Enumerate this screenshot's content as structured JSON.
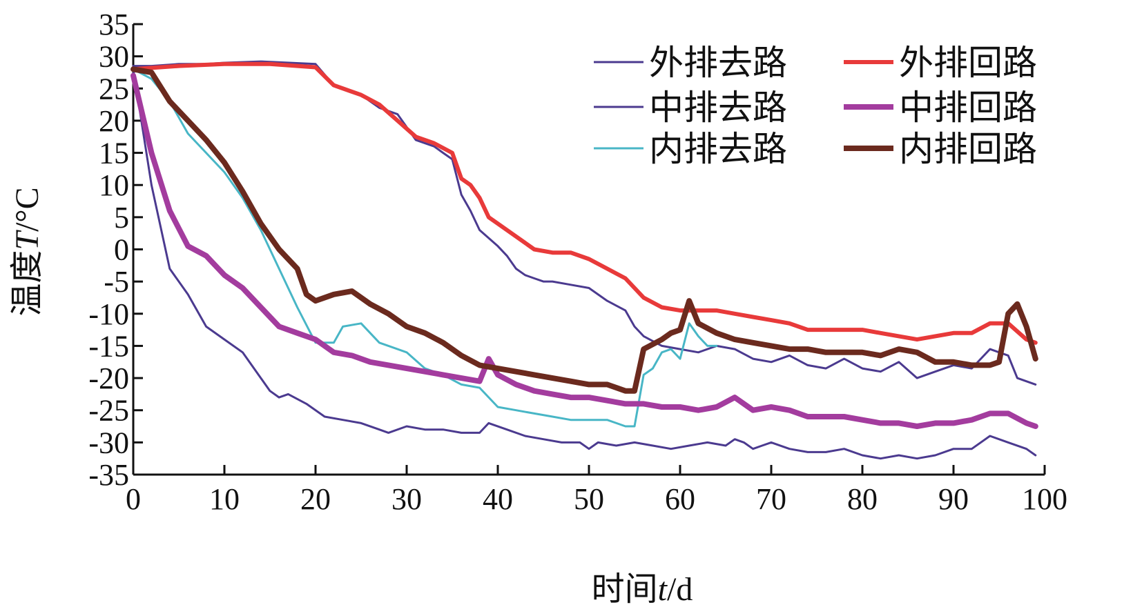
{
  "chart_data": {
    "type": "line",
    "title": "",
    "xlabel": {
      "prefix": "时间",
      "var": "t",
      "suffix": "/d"
    },
    "ylabel": {
      "prefix": "温度",
      "var": "T",
      "suffix": "/°C"
    },
    "xlim": [
      0,
      100
    ],
    "ylim": [
      -35,
      35
    ],
    "x_ticks": [
      0,
      10,
      20,
      30,
      40,
      50,
      60,
      70,
      80,
      90,
      100
    ],
    "y_ticks": [
      35,
      30,
      25,
      20,
      15,
      10,
      5,
      0,
      -5,
      -10,
      -15,
      -20,
      -25,
      -30,
      -35
    ],
    "grid": false,
    "legend_position": "top-right",
    "series": [
      {
        "name": "外排去路",
        "color": "#4b3a8f",
        "stroke_width": 3,
        "x": [
          0,
          2,
          5,
          8,
          10,
          14,
          20,
          22,
          25,
          27,
          29,
          31,
          33,
          34,
          35,
          36,
          37,
          38,
          40,
          41,
          42,
          43,
          44,
          45,
          46,
          48,
          50,
          52,
          54,
          55,
          56,
          58,
          60,
          62,
          64,
          66,
          68,
          70,
          72,
          74,
          76,
          78,
          80,
          82,
          84,
          86,
          88,
          90,
          92,
          94,
          96,
          97,
          99
        ],
        "y": [
          28.5,
          28.5,
          28.8,
          28.8,
          29,
          29.2,
          28.8,
          25.5,
          24,
          22,
          21,
          17,
          16,
          15,
          14,
          8.5,
          6,
          3,
          0.5,
          -1,
          -3,
          -4,
          -4.5,
          -5,
          -5,
          -5.5,
          -6,
          -8,
          -9.5,
          -12,
          -13.5,
          -15,
          -15.5,
          -16,
          -15,
          -15.5,
          -17,
          -17.5,
          -16.5,
          -18,
          -18.5,
          -17,
          -18.5,
          -19,
          -17.5,
          -20,
          -19,
          -18,
          -18.5,
          -15.5,
          -16.5,
          -20,
          -21
        ]
      },
      {
        "name": "中排去路",
        "color": "#4b3a8f",
        "stroke_width": 3,
        "x": [
          0,
          2,
          4,
          6,
          8,
          10,
          12,
          14,
          15,
          16,
          17,
          19,
          21,
          23,
          25,
          27,
          28,
          30,
          32,
          34,
          36,
          38,
          39,
          41,
          43,
          45,
          47,
          49,
          50,
          51,
          53,
          55,
          57,
          59,
          61,
          63,
          65,
          66,
          67,
          68,
          69,
          70,
          72,
          74,
          76,
          78,
          80,
          82,
          84,
          86,
          88,
          90,
          92,
          94,
          96,
          98,
          99
        ],
        "y": [
          28,
          10,
          -3,
          -7,
          -12,
          -14,
          -16,
          -20,
          -22,
          -23,
          -22.5,
          -24,
          -26,
          -26.5,
          -27,
          -28,
          -28.5,
          -27.5,
          -28,
          -28,
          -28.5,
          -28.5,
          -27,
          -28,
          -29,
          -29.5,
          -30,
          -30,
          -31,
          -30,
          -30.5,
          -30,
          -30.5,
          -31,
          -30.5,
          -30,
          -30.5,
          -29.5,
          -30,
          -31,
          -30.5,
          -30,
          -31,
          -31.5,
          -31.5,
          -31,
          -32,
          -32.5,
          -32,
          -32.5,
          -32,
          -31,
          -31,
          -29,
          -30,
          -31,
          -32
        ]
      },
      {
        "name": "内排去路",
        "color": "#48b6c6",
        "stroke_width": 3,
        "x": [
          0,
          2,
          4,
          6,
          8,
          10,
          12,
          14,
          16,
          18,
          20,
          22,
          23,
          25,
          27,
          28,
          30,
          32,
          34,
          36,
          38,
          40,
          42,
          44,
          46,
          48,
          50,
          52,
          54,
          55,
          56,
          57,
          58,
          59,
          60,
          61,
          62,
          63,
          64
        ],
        "y": [
          28,
          26.5,
          23,
          18,
          15,
          12,
          8,
          3,
          -3,
          -9,
          -14.5,
          -14.5,
          -12,
          -11.5,
          -14.5,
          -15,
          -16,
          -18.5,
          -19.5,
          -21,
          -21.5,
          -24.5,
          -25,
          -25.5,
          -26,
          -26.5,
          -26.5,
          -26.5,
          -27.5,
          -27.5,
          -19.5,
          -18.5,
          -16,
          -15.5,
          -17,
          -11.5,
          -13.5,
          -15,
          -15
        ]
      },
      {
        "name": "外排回路",
        "color": "#e83a3a",
        "stroke_width": 6,
        "x": [
          0,
          5,
          10,
          15,
          20,
          22,
          25,
          27,
          29,
          31,
          33,
          35,
          36,
          37,
          38,
          39,
          40,
          42,
          44,
          46,
          48,
          50,
          52,
          54,
          56,
          58,
          60,
          62,
          64,
          66,
          68,
          70,
          72,
          74,
          76,
          78,
          80,
          82,
          84,
          86,
          88,
          90,
          92,
          94,
          96,
          98,
          99
        ],
        "y": [
          28,
          28.5,
          28.8,
          28.8,
          28.3,
          25.5,
          24,
          22.5,
          20,
          17.5,
          16.5,
          15,
          11,
          10,
          8,
          5,
          4,
          2,
          0,
          -0.5,
          -0.5,
          -1.5,
          -3,
          -4.5,
          -7.5,
          -9,
          -9.5,
          -9.5,
          -9.5,
          -10,
          -10.5,
          -11,
          -11.5,
          -12.5,
          -12.5,
          -12.5,
          -12.5,
          -13,
          -13.5,
          -14,
          -13.5,
          -13,
          -13,
          -11.5,
          -11.5,
          -14,
          -14.5
        ]
      },
      {
        "name": "中排回路",
        "color": "#a33c9e",
        "stroke_width": 8,
        "x": [
          0,
          2,
          4,
          6,
          8,
          10,
          12,
          14,
          16,
          18,
          20,
          22,
          24,
          26,
          28,
          30,
          32,
          34,
          36,
          38,
          39,
          40,
          42,
          44,
          46,
          48,
          50,
          52,
          54,
          56,
          58,
          60,
          62,
          64,
          66,
          68,
          70,
          72,
          74,
          76,
          78,
          80,
          82,
          84,
          86,
          88,
          90,
          92,
          94,
          96,
          98,
          99
        ],
        "y": [
          27,
          15,
          6,
          0.5,
          -1,
          -4,
          -6,
          -9,
          -12,
          -13,
          -14,
          -16,
          -16.5,
          -17.5,
          -18,
          -18.5,
          -19,
          -19.5,
          -20,
          -20.5,
          -17,
          -19.5,
          -21,
          -22,
          -22.5,
          -23,
          -23,
          -23.5,
          -24,
          -24,
          -24.5,
          -24.5,
          -25,
          -24.5,
          -23,
          -25,
          -24.5,
          -25,
          -26,
          -26,
          -26,
          -26.5,
          -27,
          -27,
          -27.5,
          -27,
          -27,
          -26.5,
          -25.5,
          -25.5,
          -27,
          -27.5
        ]
      },
      {
        "name": "内排回路",
        "color": "#6b2a1e",
        "stroke_width": 8,
        "x": [
          0,
          2,
          4,
          6,
          8,
          10,
          12,
          14,
          16,
          18,
          19,
          20,
          22,
          24,
          26,
          28,
          30,
          32,
          34,
          36,
          38,
          40,
          42,
          44,
          46,
          48,
          50,
          52,
          54,
          55,
          56,
          58,
          59,
          60,
          61,
          62,
          64,
          66,
          68,
          70,
          72,
          74,
          76,
          78,
          80,
          82,
          84,
          86,
          88,
          90,
          92,
          94,
          95,
          96,
          97,
          98,
          99
        ],
        "y": [
          28,
          27.5,
          23,
          20,
          17,
          13.5,
          9,
          4,
          0,
          -3,
          -7,
          -8,
          -7,
          -6.5,
          -8.5,
          -10,
          -12,
          -13,
          -14.5,
          -16.5,
          -18,
          -18.5,
          -19,
          -19.5,
          -20,
          -20.5,
          -21,
          -21,
          -22,
          -22,
          -15.5,
          -14,
          -13,
          -12.5,
          -8,
          -11.5,
          -13,
          -14,
          -14.5,
          -15,
          -15.5,
          -15.5,
          -16,
          -16,
          -16,
          -16.5,
          -15.5,
          -16,
          -17.5,
          -17.5,
          -18,
          -18,
          -17.5,
          -10,
          -8.5,
          -12,
          -17
        ]
      }
    ]
  }
}
